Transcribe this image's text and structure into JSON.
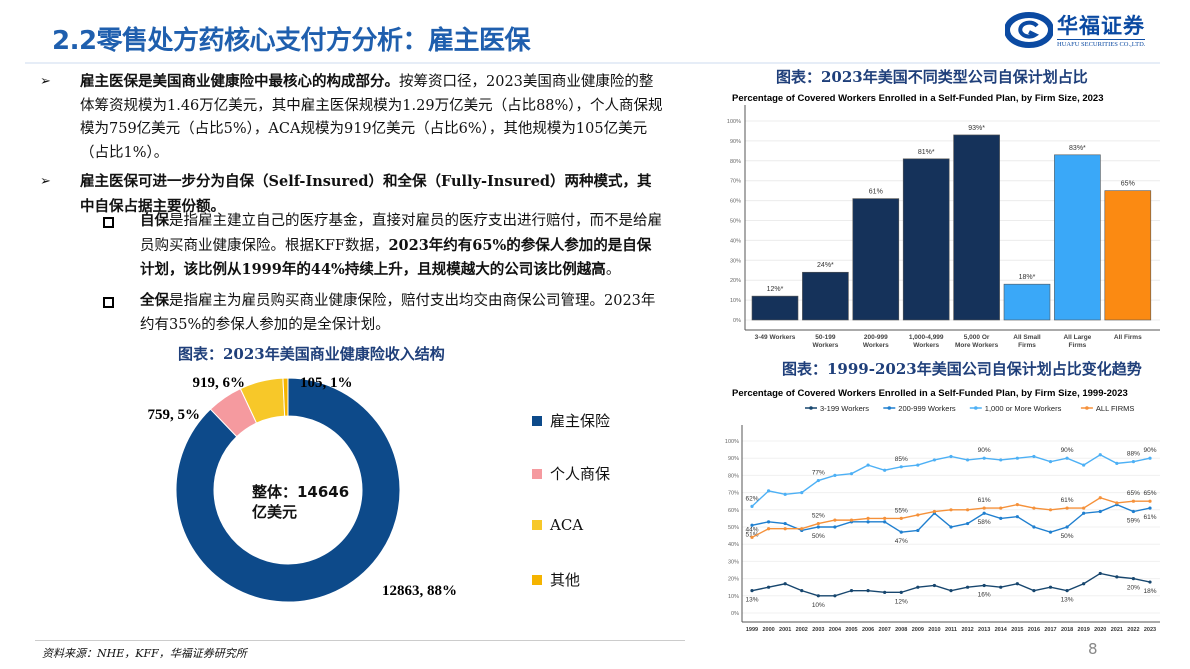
{
  "header": {
    "title": "2.2零售处方药核心支付方分析：雇主医保",
    "logo_cn": "华福证券",
    "logo_en": "HUAFU SECURITIES CO.,LTD."
  },
  "bullets": [
    {
      "segments": [
        {
          "t": "雇主医保是美国商业健康险中最核心的构成部分。",
          "b": true
        },
        {
          "t": "按筹资口径，2023美国商业健康险的整体筹资规模为1.46万亿美元，其中雇主医保规模为1.29万亿美元（占比88%），个人商保规模为759亿美元（占比5%），ACA规模为919亿美元（占比6%），其他规模为105亿美元（占比1%）。",
          "b": false
        }
      ]
    },
    {
      "segments": [
        {
          "t": "雇主医保可进一步分为自保（Self-Insured）和全保（Fully-Insured）两种模式，其中自保占据主要份额。",
          "b": true
        }
      ]
    }
  ],
  "sub_bullets": [
    {
      "segments": [
        {
          "t": "自保",
          "b": true
        },
        {
          "t": "是指雇主建立自己的医疗基金，直接对雇员的医疗支出进行赔付，而不是给雇员购买商业健康保险。根据KFF数据，",
          "b": false
        },
        {
          "t": "2023年约有65%的参保人参加的是自保计划，该比例从1999年的44%持续上升，且规模越大的公司该比例越高",
          "b": true
        },
        {
          "t": "。",
          "b": false
        }
      ]
    },
    {
      "segments": [
        {
          "t": "全保",
          "b": true
        },
        {
          "t": "是指雇主为雇员购买商业健康保险，赔付支出均交由商保公司管理。2023年约有35%的参保人参加的是全保计划。",
          "b": false
        }
      ]
    }
  ],
  "source": "资料来源：NHE，KFF，华福证券研究所",
  "page_number": "8",
  "chart_data": [
    {
      "type": "pie",
      "caption": "图表：2023年美国商业健康险收入结构",
      "center_label": "整体：14646亿美元",
      "center_label_lines": [
        "整体：14646",
        "亿美元"
      ],
      "slices": [
        {
          "name": "雇主保险",
          "value": 12863,
          "pct": 88,
          "label": "12863, 88%",
          "color": "#0d4a8a"
        },
        {
          "name": "个人商保",
          "value": 759,
          "pct": 5,
          "label": "759, 5%",
          "color": "#f59a9f"
        },
        {
          "name": "ACA",
          "value": 919,
          "pct": 6,
          "label": "919, 6%",
          "color": "#f7c829"
        },
        {
          "name": "其他",
          "value": 105,
          "pct": 1,
          "label": "105, 1%",
          "color": "#f5b400"
        }
      ],
      "legend": "right"
    },
    {
      "type": "bar",
      "caption": "图表：2023年美国不同类型公司自保计划占比",
      "title": "Percentage of Covered Workers Enrolled in a Self-Funded Plan, by Firm Size, 2023",
      "categories": [
        [
          "3-49 Workers"
        ],
        [
          "50-199",
          "Workers"
        ],
        [
          "200-999",
          "Workers"
        ],
        [
          "1,000-4,999",
          "Workers"
        ],
        [
          "5,000 Or",
          "More Workers"
        ],
        [
          "All Small",
          "Firms"
        ],
        [
          "All Large",
          "Firms"
        ],
        [
          "All Firms"
        ]
      ],
      "values": [
        12,
        24,
        61,
        81,
        93,
        18,
        83,
        65
      ],
      "data_labels": [
        "12%*",
        "24%*",
        "61%",
        "81%*",
        "93%*",
        "18%*",
        "83%*",
        "65%"
      ],
      "colors": [
        "#15325a",
        "#15325a",
        "#15325a",
        "#15325a",
        "#15325a",
        "#3aa8f8",
        "#3aa8f8",
        "#fb8a12"
      ],
      "ylim": [
        0,
        100
      ],
      "yticks": [
        "0%",
        "10%",
        "20%",
        "30%",
        "40%",
        "50%",
        "60%",
        "70%",
        "80%",
        "90%",
        "100%"
      ],
      "grid": true
    },
    {
      "type": "line",
      "caption": "图表：1999-2023年美国公司自保计划占比变化趋势",
      "title": "Percentage of Covered Workers Enrolled in a Self-Funded Plan, by Firm Size, 1999-2023",
      "x": [
        1999,
        2000,
        2001,
        2002,
        2003,
        2004,
        2005,
        2006,
        2007,
        2008,
        2009,
        2010,
        2011,
        2012,
        2013,
        2014,
        2015,
        2016,
        2017,
        2018,
        2019,
        2020,
        2021,
        2022,
        2023
      ],
      "ylim": [
        0,
        100
      ],
      "yticks": [
        "0%",
        "10%",
        "20%",
        "30%",
        "40%",
        "50%",
        "60%",
        "70%",
        "80%",
        "90%",
        "100%"
      ],
      "grid": true,
      "legend": "top",
      "series": [
        {
          "name": "3-199 Workers",
          "color": "#17466e",
          "values": [
            13,
            15,
            17,
            13,
            10,
            10,
            13,
            13,
            12,
            12,
            15,
            16,
            13,
            15,
            16,
            15,
            17,
            13,
            15,
            13,
            17,
            23,
            21,
            20,
            18
          ],
          "labels": {
            "1999": "13%",
            "2003": "10%",
            "2008": "12%",
            "2013": "16%",
            "2018": "13%",
            "2022": "20%",
            "2023": "18%"
          },
          "label_pos": "below"
        },
        {
          "name": "200-999 Workers",
          "color": "#1f7fcf",
          "values": [
            51,
            53,
            52,
            48,
            50,
            50,
            53,
            53,
            53,
            47,
            48,
            58,
            50,
            52,
            58,
            55,
            56,
            50,
            47,
            50,
            58,
            59,
            63,
            59,
            61
          ],
          "labels": {
            "1999": "51%",
            "2003": "50%",
            "2008": "47%",
            "2013": "58%",
            "2018": "50%",
            "2022": "59%",
            "2023": "61%"
          },
          "label_pos": "below"
        },
        {
          "name": "1,000 or More Workers",
          "color": "#4db0f5",
          "values": [
            62,
            71,
            69,
            70,
            77,
            80,
            81,
            86,
            83,
            85,
            86,
            89,
            91,
            89,
            90,
            89,
            90,
            91,
            88,
            90,
            86,
            92,
            87,
            88,
            90
          ],
          "labels": {
            "1999": "62%",
            "2003": "77%",
            "2008": "85%",
            "2013": "90%",
            "2018": "90%",
            "2022": "88%",
            "2023": "90%"
          },
          "label_pos": "above"
        },
        {
          "name": "ALL FIRMS",
          "color": "#f5913a",
          "values": [
            44,
            49,
            49,
            49,
            52,
            54,
            54,
            55,
            55,
            55,
            57,
            59,
            60,
            60,
            61,
            61,
            63,
            61,
            60,
            61,
            61,
            67,
            64,
            65,
            65
          ],
          "labels": {
            "1999": "44%",
            "2003": "52%",
            "2008": "55%",
            "2013": "61%",
            "2018": "61%",
            "2022": "65%",
            "2023": "65%"
          },
          "label_pos": "above"
        }
      ]
    }
  ]
}
